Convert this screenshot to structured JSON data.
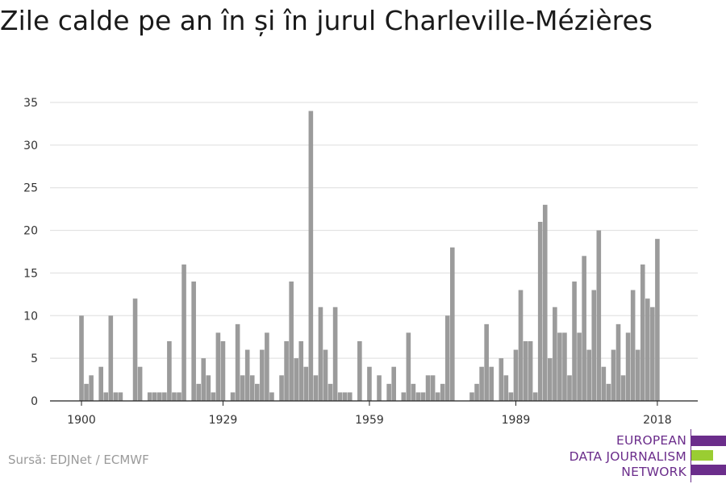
{
  "chart_data": {
    "type": "bar",
    "title": "Zile calde pe an în și în jurul Charleville-Mézières",
    "xlabel": "",
    "ylabel": "",
    "x": [
      1900,
      1901,
      1902,
      1903,
      1904,
      1905,
      1906,
      1907,
      1908,
      1909,
      1910,
      1911,
      1912,
      1913,
      1914,
      1915,
      1916,
      1917,
      1918,
      1919,
      1920,
      1921,
      1922,
      1923,
      1924,
      1925,
      1926,
      1927,
      1928,
      1929,
      1930,
      1931,
      1932,
      1933,
      1934,
      1935,
      1936,
      1937,
      1938,
      1939,
      1940,
      1941,
      1942,
      1943,
      1944,
      1945,
      1946,
      1947,
      1948,
      1949,
      1950,
      1951,
      1952,
      1953,
      1954,
      1955,
      1956,
      1957,
      1958,
      1959,
      1960,
      1961,
      1962,
      1963,
      1964,
      1965,
      1966,
      1967,
      1968,
      1969,
      1970,
      1971,
      1972,
      1973,
      1974,
      1975,
      1976,
      1977,
      1978,
      1979,
      1980,
      1981,
      1982,
      1983,
      1984,
      1985,
      1986,
      1987,
      1988,
      1989,
      1990,
      1991,
      1992,
      1993,
      1994,
      1995,
      1996,
      1997,
      1998,
      1999,
      2000,
      2001,
      2002,
      2003,
      2004,
      2005,
      2006,
      2007,
      2008,
      2009,
      2010,
      2011,
      2012,
      2013,
      2014,
      2015,
      2016,
      2017,
      2018
    ],
    "values": [
      10,
      2,
      3,
      0,
      4,
      1,
      10,
      1,
      1,
      0,
      0,
      12,
      4,
      0,
      1,
      1,
      1,
      1,
      7,
      1,
      1,
      16,
      0,
      14,
      2,
      5,
      3,
      1,
      8,
      7,
      0,
      1,
      9,
      3,
      6,
      3,
      2,
      6,
      8,
      1,
      0,
      3,
      7,
      14,
      5,
      7,
      4,
      34,
      3,
      11,
      6,
      2,
      11,
      1,
      1,
      1,
      0,
      7,
      0,
      4,
      0,
      3,
      0,
      2,
      4,
      0,
      1,
      8,
      2,
      1,
      1,
      3,
      3,
      1,
      2,
      10,
      18,
      0,
      0,
      0,
      1,
      2,
      4,
      9,
      4,
      0,
      5,
      3,
      1,
      6,
      13,
      7,
      7,
      1,
      21,
      23,
      5,
      11,
      8,
      8,
      3,
      14,
      8,
      17,
      6,
      13,
      20,
      4,
      2,
      6,
      9,
      3,
      8,
      13,
      6,
      16,
      12,
      11,
      19
    ],
    "xticks": [
      "1900",
      "1929",
      "1959",
      "1989",
      "2018"
    ],
    "yticks": [
      "0",
      "5",
      "10",
      "15",
      "20",
      "25",
      "30",
      "35"
    ],
    "ylim": [
      0,
      35
    ],
    "grid": "horizontal",
    "colors": {
      "bar": "#9b9b9b",
      "grid": "#dddddd",
      "axis": "#222222"
    }
  },
  "source": "Sursă: EDJNet / ECMWF",
  "logo": {
    "lines": [
      "EUROPEAN",
      "DATA JOURNALISM",
      "NETWORK"
    ],
    "colors": {
      "purple": "#6b2d8b",
      "green": "#9acd32"
    }
  }
}
